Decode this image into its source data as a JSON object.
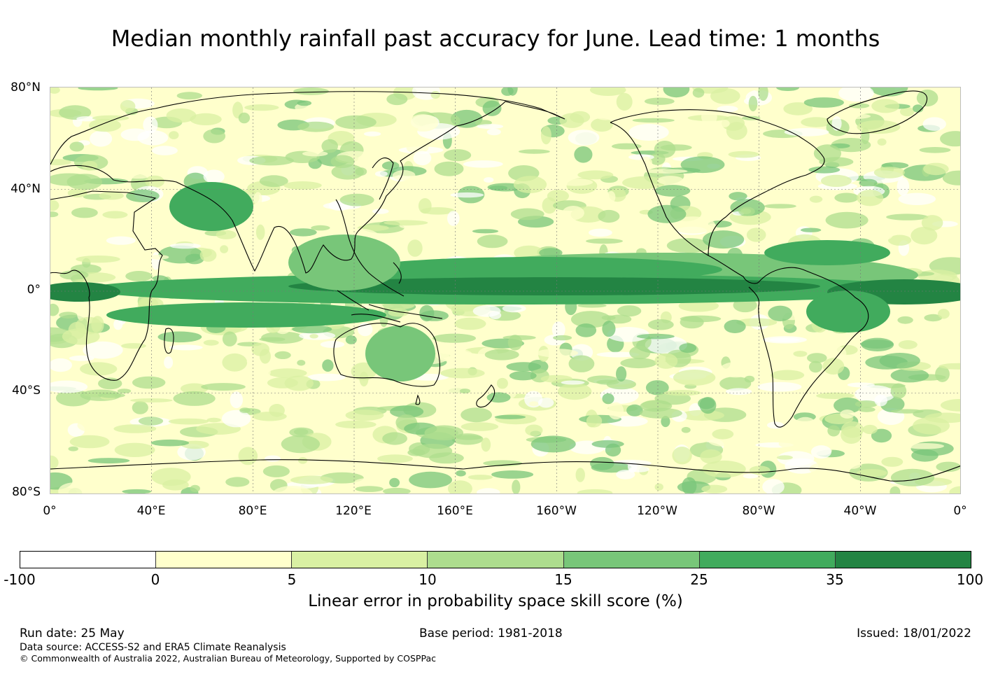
{
  "title": "Median monthly rainfall past accuracy for June. Lead time: 1 months",
  "map": {
    "lat_labels": [
      "80°N",
      "40°N",
      "0°",
      "40°S",
      "80°S"
    ],
    "lon_labels": [
      "0°",
      "40°E",
      "80°E",
      "120°E",
      "160°E",
      "160°W",
      "120°W",
      "80°W",
      "40°W",
      "0°"
    ],
    "gridlines": true
  },
  "colorbar": {
    "colors": [
      "#ffffff",
      "#ffffcc",
      "#d9f0a3",
      "#addd8e",
      "#78c679",
      "#41ab5d",
      "#238443"
    ],
    "ticks": [
      "-100",
      "0",
      "5",
      "10",
      "15",
      "25",
      "35",
      "100"
    ],
    "label": "Linear error in probability space skill score (%)"
  },
  "footer": {
    "run_date": "Run date: 25 May",
    "base_period": "Base period: 1981-2018",
    "issued": "Issued: 18/01/2022",
    "data_source": "Data source: ACCESS-S2 and ERA5 Climate Reanalysis",
    "copyright": "© Commonwealth of Australia 2022, Australian Bureau of Meteorology, Supported by COSPPac"
  }
}
